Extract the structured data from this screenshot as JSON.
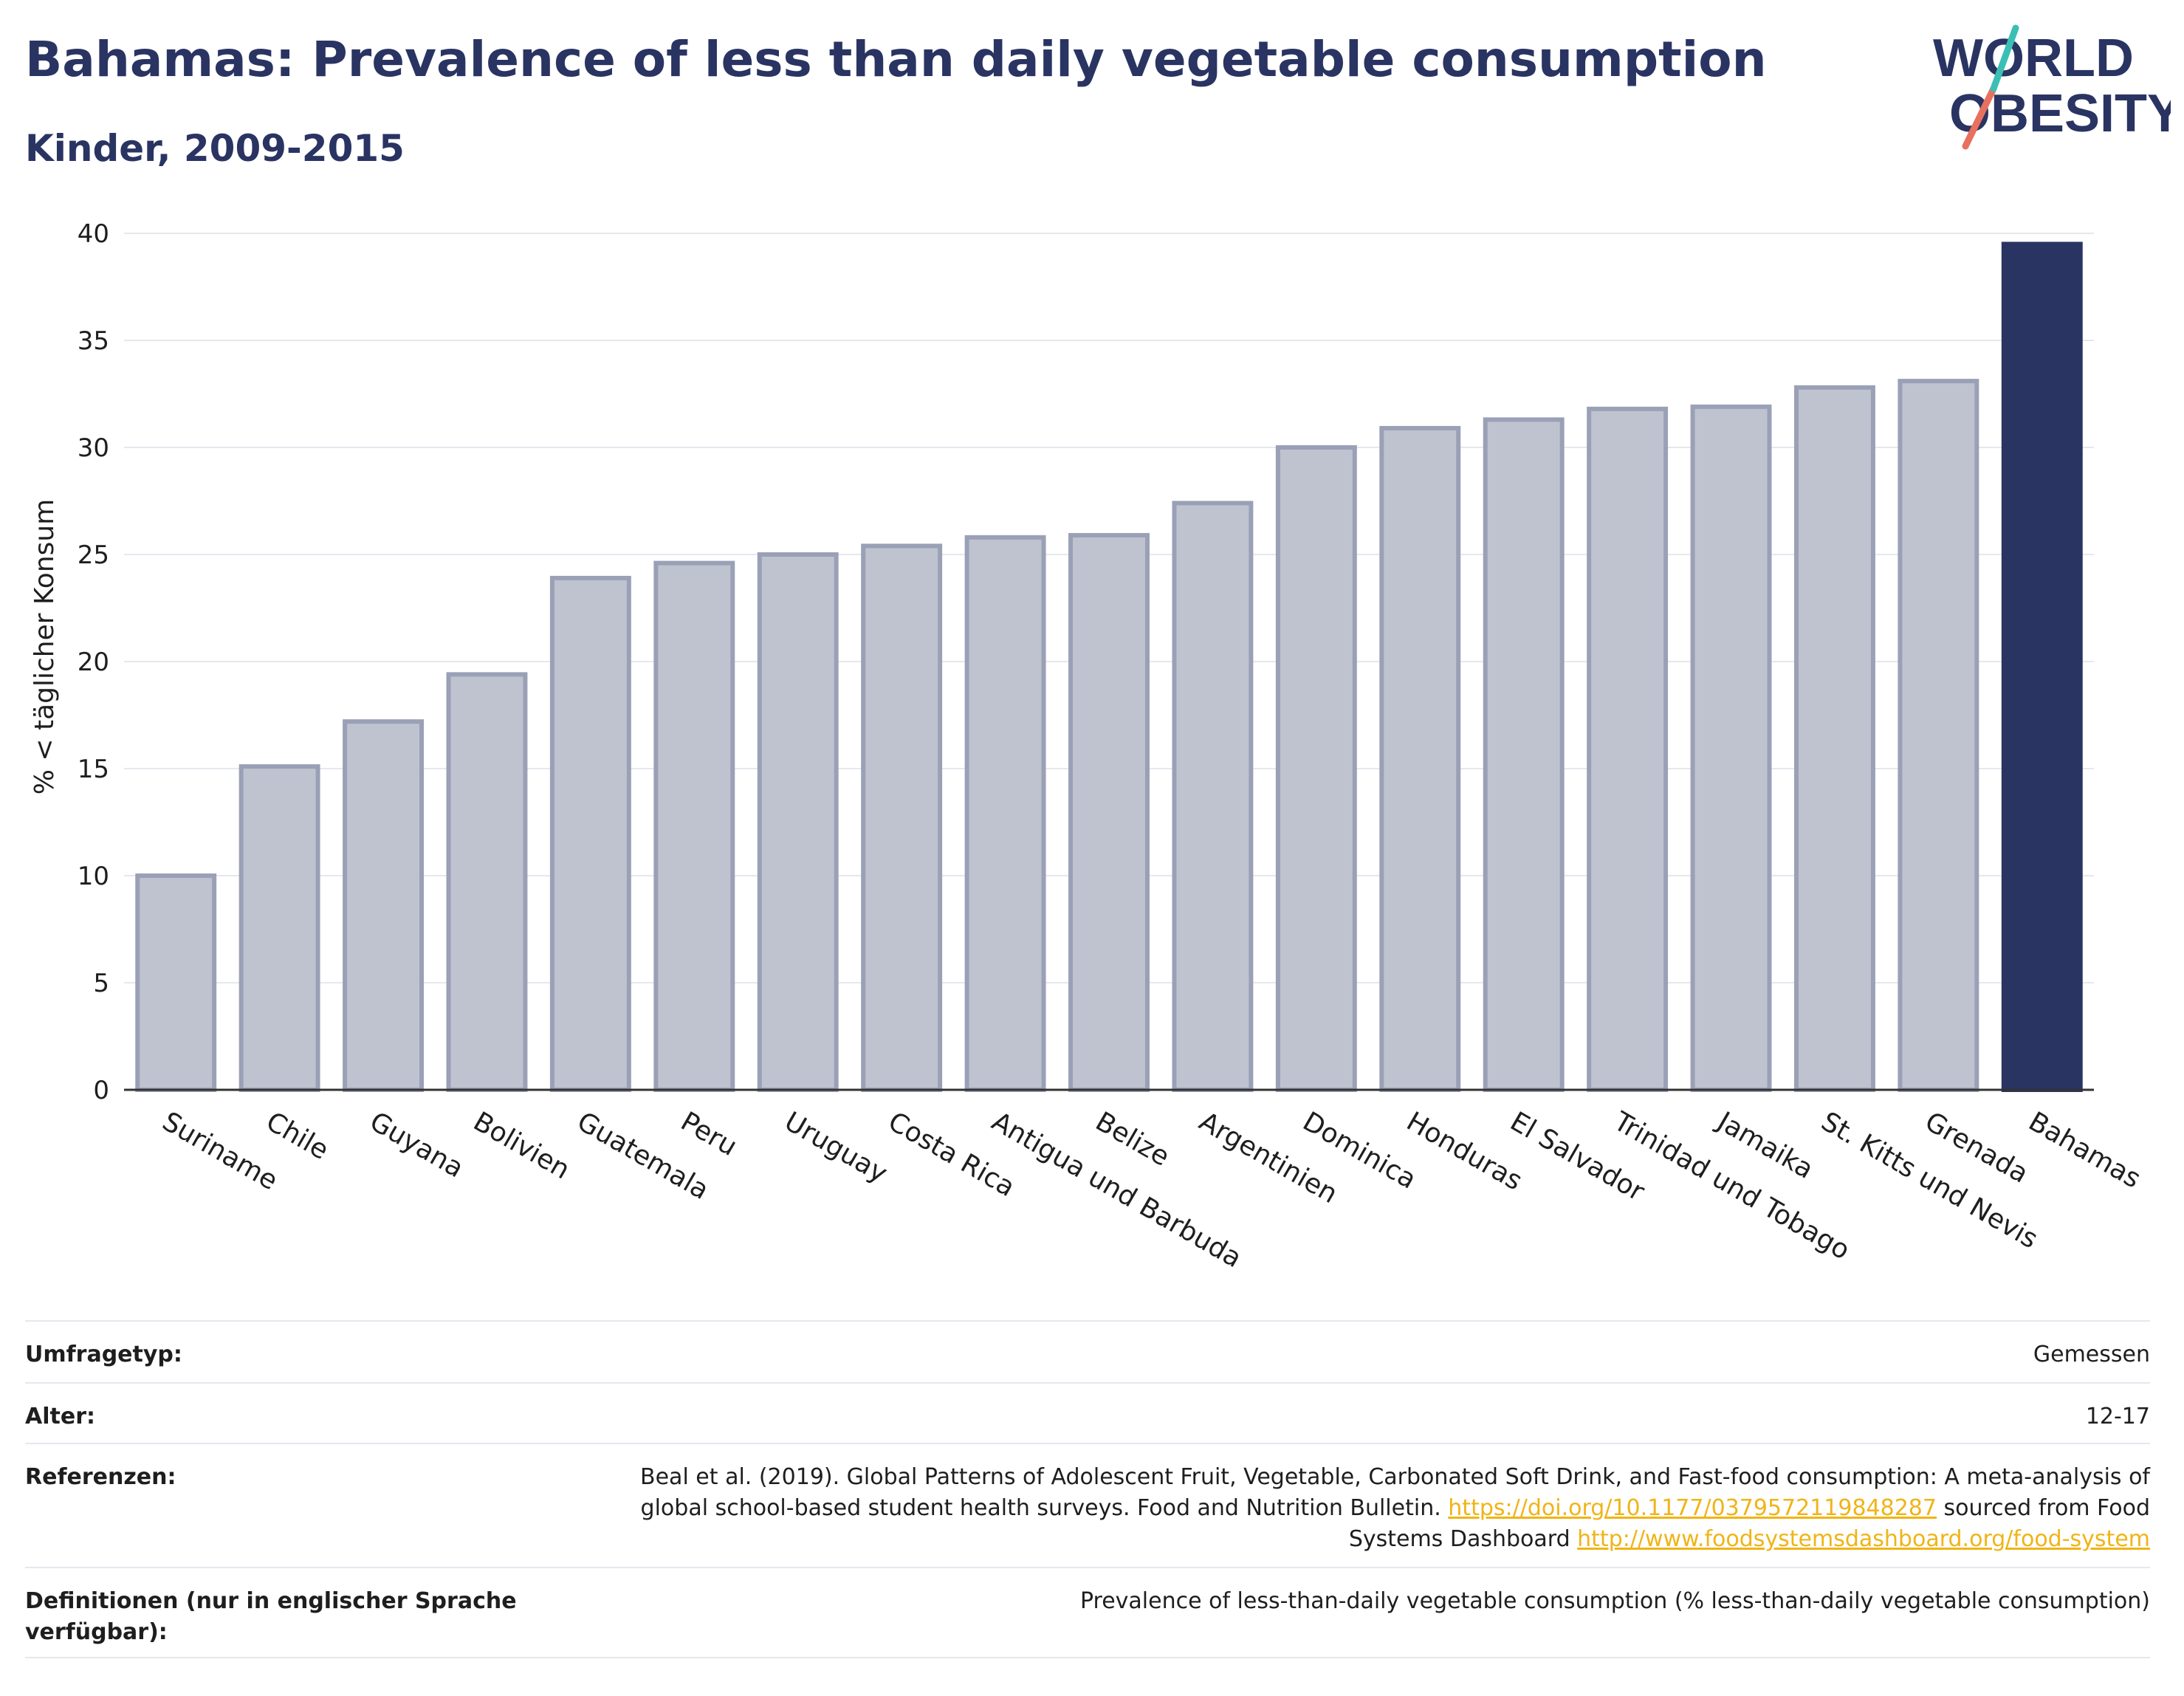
{
  "header": {
    "title": "Bahamas: Prevalence of less than daily vegetable consumption",
    "subtitle": "Kinder, 2009-2015"
  },
  "logo": {
    "line1": "WORLD",
    "line2": "OBESITY"
  },
  "colors": {
    "highlight": "#2a3462",
    "bar_fill": "#bfc3d0",
    "bar_stroke": "#9aa0b6",
    "grid": "#e6e8ef",
    "axis": "#333333"
  },
  "chart_data": {
    "type": "bar",
    "title": "Bahamas: Prevalence of less than daily vegetable consumption",
    "subtitle": "Kinder, 2009-2015",
    "ylabel": "% < täglicher Konsum",
    "xlabel": "",
    "ylim": [
      0,
      40
    ],
    "yticks": [
      0,
      5,
      10,
      15,
      20,
      25,
      30,
      35,
      40
    ],
    "grid": true,
    "highlight": "Bahamas",
    "categories": [
      "Suriname",
      "Chile",
      "Guyana",
      "Bolivien",
      "Guatemala",
      "Peru",
      "Uruguay",
      "Costa Rica",
      "Antigua und Barbuda",
      "Belize",
      "Argentinien",
      "Dominica",
      "Honduras",
      "El Salvador",
      "Trinidad und Tobago",
      "Jamaika",
      "St. Kitts und Nevis",
      "Grenada",
      "Bahamas"
    ],
    "values": [
      10.0,
      15.1,
      17.2,
      19.4,
      23.9,
      24.6,
      25.0,
      25.4,
      25.8,
      25.9,
      27.4,
      30.0,
      30.9,
      31.3,
      31.8,
      31.9,
      32.8,
      33.1,
      39.5
    ]
  },
  "meta": {
    "survey_type_label": "Umfragetyp:",
    "survey_type_value": "Gemessen",
    "age_label": "Alter:",
    "age_value": "12-17",
    "references_label": "Referenzen:",
    "references_text1": "Beal et al. (2019). Global Patterns of Adolescent Fruit, Vegetable, Carbonated Soft Drink, and Fast-food consumption: A meta-analysis of global school-based student health surveys. Food and Nutrition Bulletin. ",
    "references_link1": "https://doi.org/10.1177/0379572119848287",
    "references_text2": " sourced from Food Systems Dashboard ",
    "references_link2": "http://www.foodsystemsdashboard.org/food-system",
    "definitions_label": "Definitionen (nur in englischer Sprache verfügbar):",
    "definitions_value": "Prevalence of less-than-daily vegetable consumption (% less-than-daily vegetable consumption)"
  }
}
